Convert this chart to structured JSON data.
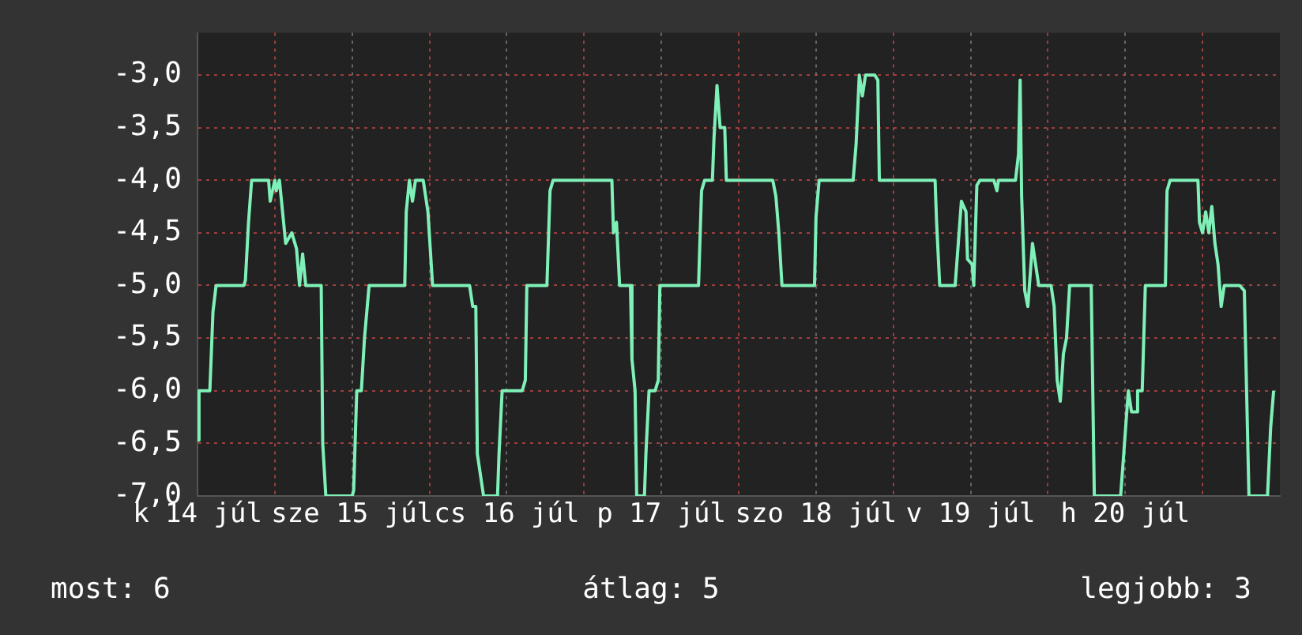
{
  "chart_data": {
    "type": "line",
    "x": [
      "--07-14T12:00",
      "--07-14T12:14",
      "--07-14T13:55",
      "--07-14T14:24",
      "--07-14T14:53",
      "--07-14T19:12",
      "--07-14T19:26",
      "--07-14T19:55",
      "--07-14T20:24",
      "--07-14T23:02",
      "--07-14T23:17",
      "--07-15T00:00",
      "--07-15T00:14",
      "--07-15T00:43",
      "--07-15T01:12",
      "--07-15T01:41",
      "--07-15T02:38",
      "--07-15T03:22",
      "--07-15T03:50",
      "--07-15T04:19",
      "--07-15T04:48",
      "--07-15T07:12",
      "--07-15T07:26",
      "--07-15T07:55",
      "--07-15T12:00",
      "--07-15T12:14",
      "--07-15T12:43",
      "--07-15T13:26",
      "--07-15T13:55",
      "--07-15T14:38",
      "--07-15T20:10",
      "--07-15T20:24",
      "--07-15T20:53",
      "--07-15T21:22",
      "--07-15T21:50",
      "--07-15T23:02",
      "--07-15T23:46",
      "--07-16T00:29",
      "--07-16T06:14",
      "--07-16T06:43",
      "--07-16T07:12",
      "--07-16T07:26",
      "--07-16T07:55",
      "--07-16T08:24",
      "--07-16T10:34",
      "--07-16T10:48",
      "--07-16T11:17",
      "--07-16T14:24",
      "--07-16T14:53",
      "--07-16T15:07",
      "--07-16T18:14",
      "--07-16T18:43",
      "--07-16T19:12",
      "--07-17T04:19",
      "--07-17T04:34",
      "--07-17T05:02",
      "--07-17T05:31",
      "--07-17T07:12",
      "--07-17T07:26",
      "--07-17T07:55",
      "--07-17T08:10",
      "--07-17T09:22",
      "--07-17T09:36",
      "--07-17T10:05",
      "--07-17T11:02",
      "--07-17T11:31",
      "--07-17T11:46",
      "--07-17T17:46",
      "--07-17T18:14",
      "--07-17T18:43",
      "--07-17T19:55",
      "--07-17T20:10",
      "--07-17T20:38",
      "--07-17T21:07",
      "--07-17T21:50",
      "--07-17T22:05",
      "--07-18T05:17",
      "--07-18T05:46",
      "--07-18T06:14",
      "--07-18T06:43",
      "--07-18T11:46",
      "--07-18T12:00",
      "--07-18T12:29",
      "--07-18T17:46",
      "--07-18T18:14",
      "--07-18T18:43",
      "--07-18T19:12",
      "--07-18T19:41",
      "--07-18T21:07",
      "--07-18T21:36",
      "--07-18T21:50",
      "--07-19T06:29",
      "--07-19T06:43",
      "--07-19T07:12",
      "--07-19T09:36",
      "--07-19T10:05",
      "--07-19T10:34",
      "--07-19T11:17",
      "--07-19T11:31",
      "--07-19T12:14",
      "--07-19T12:29",
      "--07-19T12:58",
      "--07-19T13:26",
      "--07-19T15:36",
      "--07-19T16:05",
      "--07-19T16:19",
      "--07-19T18:58",
      "--07-19T19:26",
      "--07-19T19:41",
      "--07-19T19:55",
      "--07-19T20:24",
      "--07-19T20:53",
      "--07-19T21:36",
      "--07-19T22:05",
      "--07-19T22:34",
      "--07-20T00:29",
      "--07-20T00:58",
      "--07-20T01:26",
      "--07-20T01:55",
      "--07-20T02:24",
      "--07-20T02:53",
      "--07-20T03:22",
      "--07-20T06:43",
      "--07-20T07:12",
      "--07-20T11:17",
      "--07-20T11:46",
      "--07-20T12:00",
      "--07-20T12:29",
      "--07-20T12:58",
      "--07-20T13:41",
      "--07-20T13:55",
      "--07-20T14:38",
      "--07-20T15:07",
      "--07-20T18:14",
      "--07-20T18:29",
      "--07-20T18:58",
      "--07-20T23:17",
      "--07-20T23:31",
      "--07-21T00:00",
      "--07-21T00:29",
      "--07-21T00:58",
      "--07-21T01:26",
      "--07-21T01:55",
      "--07-21T02:24",
      "--07-21T02:53",
      "--07-21T03:22",
      "--07-21T05:46",
      "--07-21T06:29",
      "--07-21T07:12",
      "--07-21T10:05",
      "--07-21T10:34",
      "--07-21T11:02"
    ],
    "series": [
      {
        "color": "#7ff0b8",
        "values": [
          -6.47,
          -6.0,
          -6.0,
          -5.25,
          -5.0,
          -5.0,
          -4.95,
          -4.4,
          -4.0,
          -4.0,
          -4.2,
          -4.0,
          -4.1,
          -4.0,
          -4.3,
          -4.6,
          -4.5,
          -4.65,
          -5.0,
          -4.7,
          -5.0,
          -5.0,
          -6.5,
          -7,
          -7,
          -6.95,
          -6.0,
          -6.0,
          -5.5,
          -5.0,
          -5.0,
          -4.3,
          -4.0,
          -4.2,
          -4.0,
          -4.0,
          -4.3,
          -5.0,
          -5.0,
          -5.2,
          -5.2,
          -6.6,
          -6.8,
          -7,
          -7,
          -6.6,
          -6.0,
          -6.0,
          -5.9,
          -5.0,
          -5.0,
          -4.1,
          -4.0,
          -4.0,
          -4.5,
          -4.4,
          -5.0,
          -5.0,
          -5.7,
          -6.0,
          -7,
          -7,
          -6.6,
          -6.0,
          -6.0,
          -5.9,
          -5.0,
          -5.0,
          -4.1,
          -4.0,
          -4.0,
          -3.6,
          -3.1,
          -3.5,
          -3.5,
          -4.0,
          -4.0,
          -4.15,
          -4.5,
          -5.0,
          -5.0,
          -4.35,
          -4.0,
          -4.0,
          -3.65,
          -3.0,
          -3.2,
          -3.0,
          -3.0,
          -3.05,
          -4.0,
          -4.0,
          -4.4,
          -5.0,
          -5.0,
          -4.6,
          -4.2,
          -4.3,
          -4.75,
          -4.8,
          -5.0,
          -4.05,
          -4.0,
          -4.0,
          -4.1,
          -4.0,
          -4.0,
          -3.75,
          -3.05,
          -4.15,
          -5.05,
          -5.2,
          -4.6,
          -4.8,
          -5.0,
          -5.0,
          -5.2,
          -5.9,
          -6.1,
          -5.65,
          -5.5,
          -5.0,
          -5.0,
          -7,
          -7,
          -6.6,
          -6.4,
          -6.0,
          -6.2,
          -6.2,
          -6.0,
          -6.0,
          -5.0,
          -5.0,
          -4.1,
          -4.0,
          -4.0,
          -4.4,
          -4.5,
          -4.3,
          -4.5,
          -4.25,
          -4.6,
          -4.8,
          -5.2,
          -5.0,
          -5.0,
          -5.05,
          -7,
          -7,
          -6.35,
          -6.0
        ]
      }
    ],
    "xlim": [
      "--07-14T12:00",
      "--07-21T12:00"
    ],
    "xticks": [
      {
        "value": "--07-14T12:00",
        "label": "k 14 júl"
      },
      {
        "value": "--07-15T00:00",
        "label": null
      },
      {
        "value": "--07-15T12:00",
        "label": "sze 15 júl"
      },
      {
        "value": "--07-16T00:00",
        "label": null
      },
      {
        "value": "--07-16T12:00",
        "label": "cs 16 júl"
      },
      {
        "value": "--07-17T00:00",
        "label": null
      },
      {
        "value": "--07-17T12:00",
        "label": "p 17 júl"
      },
      {
        "value": "--07-18T00:00",
        "label": null
      },
      {
        "value": "--07-18T12:00",
        "label": "szo 18 júl"
      },
      {
        "value": "--07-19T00:00",
        "label": null
      },
      {
        "value": "--07-19T12:00",
        "label": "v 19 júl"
      },
      {
        "value": "--07-20T00:00",
        "label": null
      },
      {
        "value": "--07-20T12:00",
        "label": "h 20 júl"
      },
      {
        "value": "--07-21T00:00",
        "label": null
      }
    ],
    "ylim": [
      -7,
      -2.6
    ],
    "yticks": [
      {
        "value": -7,
        "label": "-7,0"
      },
      {
        "value": -6.5,
        "label": "-6,5"
      },
      {
        "value": -6,
        "label": "-6,0"
      },
      {
        "value": -5.5,
        "label": "-5,5"
      },
      {
        "value": -5,
        "label": "-5,0"
      },
      {
        "value": -4.5,
        "label": "-4,5"
      },
      {
        "value": -4,
        "label": "-4,0"
      },
      {
        "value": -3.5,
        "label": "-3,5"
      },
      {
        "value": -3,
        "label": "-3,0"
      }
    ],
    "grid": true,
    "marker": "none",
    "line_style": "solid",
    "annotations": [
      "most: 6",
      "átlag: 5",
      "legjobb: 3"
    ]
  }
}
